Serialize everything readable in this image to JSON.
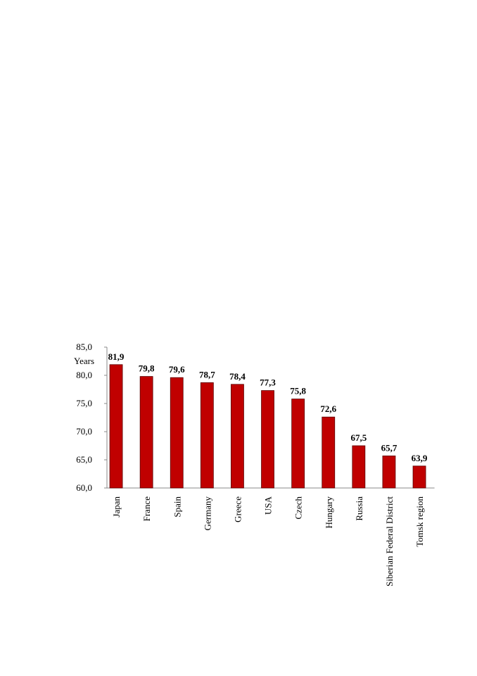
{
  "chart_data": {
    "type": "bar",
    "y_label": "Years",
    "categories": [
      "Japan",
      "France",
      "Spain",
      "Germany",
      "Greece",
      "USA",
      "Czech",
      "Hungary",
      "Russia",
      "Siberian Federal District",
      "Tomsk region"
    ],
    "values": [
      81.9,
      79.8,
      79.6,
      78.7,
      78.4,
      77.3,
      75.8,
      72.6,
      67.5,
      65.7,
      63.9
    ],
    "value_labels": [
      "81,9",
      "79,8",
      "79,6",
      "78,7",
      "78,4",
      "77,3",
      "75,8",
      "72,6",
      "67,5",
      "65,7",
      "63,9"
    ],
    "color": "#c00000",
    "ylim": [
      60,
      85
    ],
    "yticks": [
      {
        "value": 60,
        "label": "60,0"
      },
      {
        "value": 65,
        "label": "65,0"
      },
      {
        "value": 70,
        "label": "70,0"
      },
      {
        "value": 75,
        "label": "75,0"
      },
      {
        "value": 80,
        "label": "80,0"
      },
      {
        "value": 85,
        "label": "85,0"
      }
    ],
    "grid": false
  }
}
